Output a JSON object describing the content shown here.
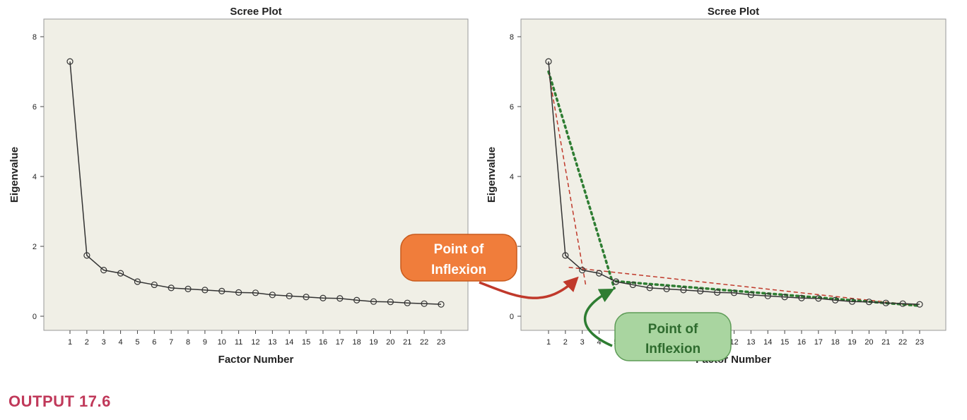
{
  "figure_caption": "OUTPUT 17.6",
  "caption_color": "#c0395a",
  "chart_data": [
    {
      "type": "line",
      "title": "Scree Plot",
      "xlabel": "Factor Number",
      "ylabel": "Eigenvalue",
      "x": [
        1,
        2,
        3,
        4,
        5,
        6,
        7,
        8,
        9,
        10,
        11,
        12,
        13,
        14,
        15,
        16,
        17,
        18,
        19,
        20,
        21,
        22,
        23
      ],
      "values": [
        7.29,
        1.74,
        1.32,
        1.23,
        0.99,
        0.9,
        0.81,
        0.78,
        0.75,
        0.72,
        0.68,
        0.67,
        0.61,
        0.58,
        0.55,
        0.52,
        0.51,
        0.46,
        0.42,
        0.41,
        0.38,
        0.36,
        0.34
      ],
      "ylim": [
        0,
        8
      ],
      "yticks": [
        0,
        2,
        4,
        6,
        8
      ],
      "grid": false,
      "legend": "none",
      "line_color": "#333333",
      "plot_bg": "#f0efe6"
    },
    {
      "type": "line",
      "title": "Scree Plot",
      "xlabel": "Factor Number",
      "ylabel": "Eigenvalue",
      "x": [
        1,
        2,
        3,
        4,
        5,
        6,
        7,
        8,
        9,
        10,
        11,
        12,
        13,
        14,
        15,
        16,
        17,
        18,
        19,
        20,
        21,
        22,
        23
      ],
      "values": [
        7.29,
        1.74,
        1.32,
        1.23,
        0.99,
        0.9,
        0.81,
        0.78,
        0.75,
        0.72,
        0.68,
        0.67,
        0.61,
        0.58,
        0.55,
        0.52,
        0.51,
        0.46,
        0.42,
        0.41,
        0.38,
        0.36,
        0.34
      ],
      "ylim": [
        0,
        8
      ],
      "yticks": [
        0,
        2,
        4,
        6,
        8
      ],
      "grid": false,
      "legend": "none",
      "line_color": "#333333",
      "plot_bg": "#f0efe6",
      "guide_lines": [
        {
          "color": "#c0392b",
          "style": "dashed",
          "points": [
            [
              1,
              7.0
            ],
            [
              3.2,
              0.9
            ]
          ]
        },
        {
          "color": "#c0392b",
          "style": "dashed",
          "points": [
            [
              2.2,
              1.4
            ],
            [
              23,
              0.3
            ]
          ]
        },
        {
          "color": "#2e7d32",
          "style": "dotted",
          "points": [
            [
              1,
              7.0
            ],
            [
              4.9,
              0.8
            ]
          ]
        },
        {
          "color": "#2e7d32",
          "style": "dotted",
          "points": [
            [
              5,
              1.0
            ],
            [
              23,
              0.3
            ]
          ]
        }
      ],
      "annotations": [
        {
          "text_lines": [
            "Point of",
            "Inflexion"
          ],
          "style": "orange",
          "points_to_x": 3
        },
        {
          "text_lines": [
            "Point of",
            "Inflexion"
          ],
          "style": "green",
          "points_to_x": 5
        }
      ]
    }
  ],
  "callout_styles": {
    "orange": {
      "fill": "#f07d3b",
      "stroke": "#c85a1c",
      "text": "#ffffff",
      "arrow": "#c0392b"
    },
    "green": {
      "fill": "#a9d5a0",
      "stroke": "#5d9b56",
      "text": "#2e6b2e",
      "arrow": "#2e7d32"
    }
  }
}
